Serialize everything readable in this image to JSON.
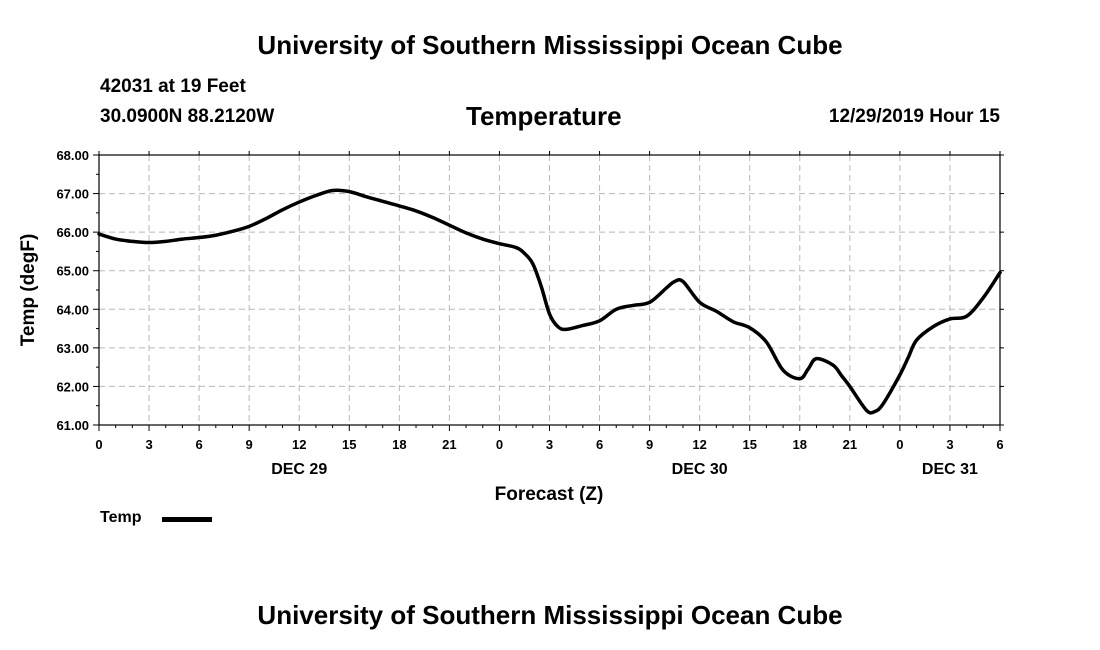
{
  "header": {
    "title": "University of Southern Mississippi Ocean Cube",
    "station": "42031 at 19 Feet",
    "coordinates": "30.0900N 88.2120W",
    "chart_title": "Temperature",
    "timestamp": "12/29/2019 Hour 15"
  },
  "footer": {
    "title": "University of Southern Mississippi Ocean Cube"
  },
  "legend": {
    "label": "Temp"
  },
  "chart_data": {
    "type": "line",
    "title": "Temperature",
    "xlabel": "Forecast (Z)",
    "ylabel": "Temp (degF)",
    "ylim": [
      61,
      68
    ],
    "xlim": [
      0,
      54
    ],
    "grid": true,
    "legend_position": "bottom-left",
    "x_ticks": [
      0,
      3,
      6,
      9,
      12,
      15,
      18,
      21,
      24,
      27,
      30,
      33,
      36,
      39,
      42,
      45,
      48,
      51,
      54
    ],
    "x_tick_labels": [
      "0",
      "3",
      "6",
      "9",
      "12",
      "15",
      "18",
      "21",
      "0",
      "3",
      "6",
      "9",
      "12",
      "15",
      "18",
      "21",
      "0",
      "3",
      "6"
    ],
    "y_ticks": [
      61,
      62,
      63,
      64,
      65,
      66,
      67,
      68
    ],
    "y_tick_labels": [
      "61.00",
      "62.00",
      "63.00",
      "64.00",
      "65.00",
      "66.00",
      "67.00",
      "68.00"
    ],
    "day_labels": [
      {
        "x": 12,
        "label": "DEC 29"
      },
      {
        "x": 36,
        "label": "DEC 30"
      },
      {
        "x": 51,
        "label": "DEC 31"
      }
    ],
    "series": [
      {
        "name": "Temp",
        "color": "#000000",
        "x": [
          0,
          1,
          2,
          3,
          4,
          5,
          6,
          7,
          8,
          9,
          10,
          11,
          12,
          13,
          14,
          15,
          16,
          17,
          18,
          19,
          20,
          21,
          22,
          23,
          24,
          25,
          25.5,
          26,
          26.5,
          27,
          27.5,
          28,
          29,
          30,
          31,
          32,
          33,
          34,
          34.5,
          35,
          36,
          37,
          38,
          39,
          40,
          41,
          42,
          42.5,
          43,
          44,
          44.5,
          45,
          46,
          46.5,
          47,
          48,
          48.5,
          49,
          50,
          51,
          52,
          53,
          54
        ],
        "values": [
          65.95,
          65.82,
          65.76,
          65.73,
          65.76,
          65.82,
          65.86,
          65.92,
          66.02,
          66.15,
          66.35,
          66.58,
          66.78,
          66.95,
          67.08,
          67.05,
          66.92,
          66.8,
          66.68,
          66.55,
          66.38,
          66.18,
          65.98,
          65.82,
          65.7,
          65.6,
          65.45,
          65.18,
          64.6,
          63.88,
          63.55,
          63.48,
          63.58,
          63.7,
          64.0,
          64.1,
          64.18,
          64.55,
          64.72,
          64.72,
          64.18,
          63.95,
          63.68,
          63.52,
          63.15,
          62.42,
          62.2,
          62.45,
          62.72,
          62.55,
          62.28,
          62.0,
          61.38,
          61.35,
          61.55,
          62.3,
          62.75,
          63.2,
          63.55,
          63.75,
          63.82,
          64.3,
          64.95
        ]
      }
    ]
  }
}
